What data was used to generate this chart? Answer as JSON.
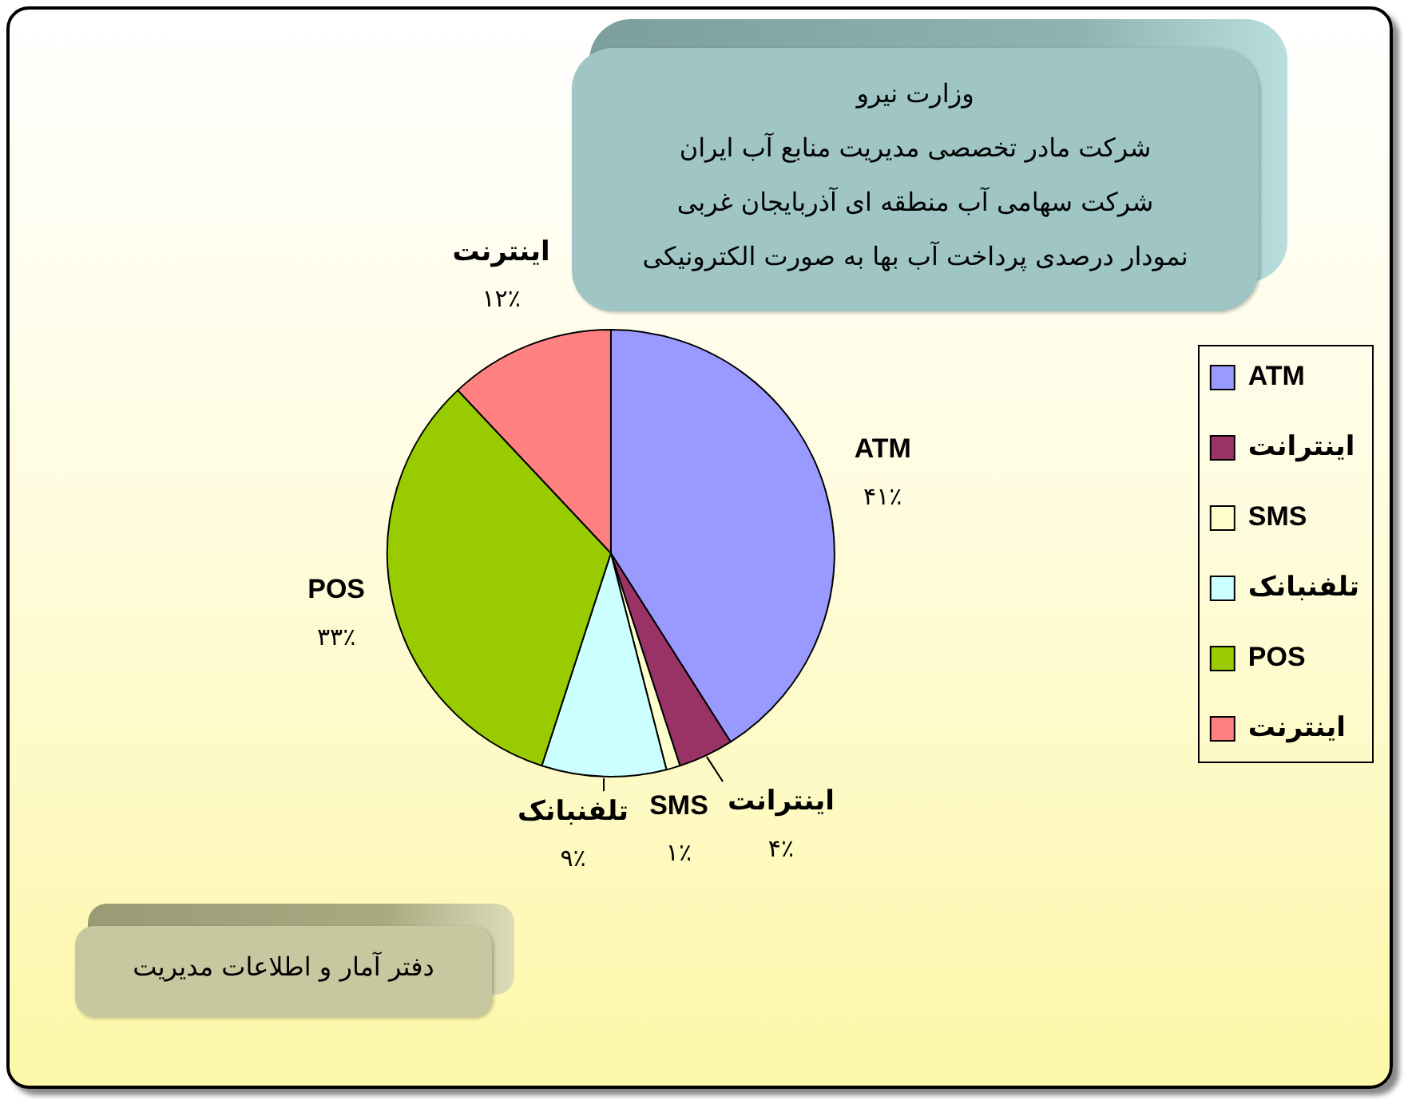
{
  "chart_data": {
    "type": "pie",
    "title": "وزارت نیرو",
    "subtitle": "شرکت مادر تخصصی مدیریت منابع آب ایران\nشرکت سهامی آب منطقه ای آذربایجان غربی\nنمودار درصدی پرداخت آب بها به صورت الکترونیکی",
    "categories": [
      "ATM",
      "اینترانت",
      "SMS",
      "تلفنبانک",
      "POS",
      "اینترنت"
    ],
    "values": [
      41,
      4,
      1,
      9,
      33,
      12
    ],
    "colors": [
      "#9999ff",
      "#993366",
      "#ffffcc",
      "#ccffff",
      "#99cc00",
      "#ff8080"
    ],
    "value_labels": [
      "۴۱٪",
      "۴٪",
      "۱٪",
      "۹٪",
      "۳۳٪",
      "۱۲٪"
    ],
    "legend": "right",
    "annotations": [
      "دفتر آمار و اطلاعات مدیریت"
    ]
  }
}
